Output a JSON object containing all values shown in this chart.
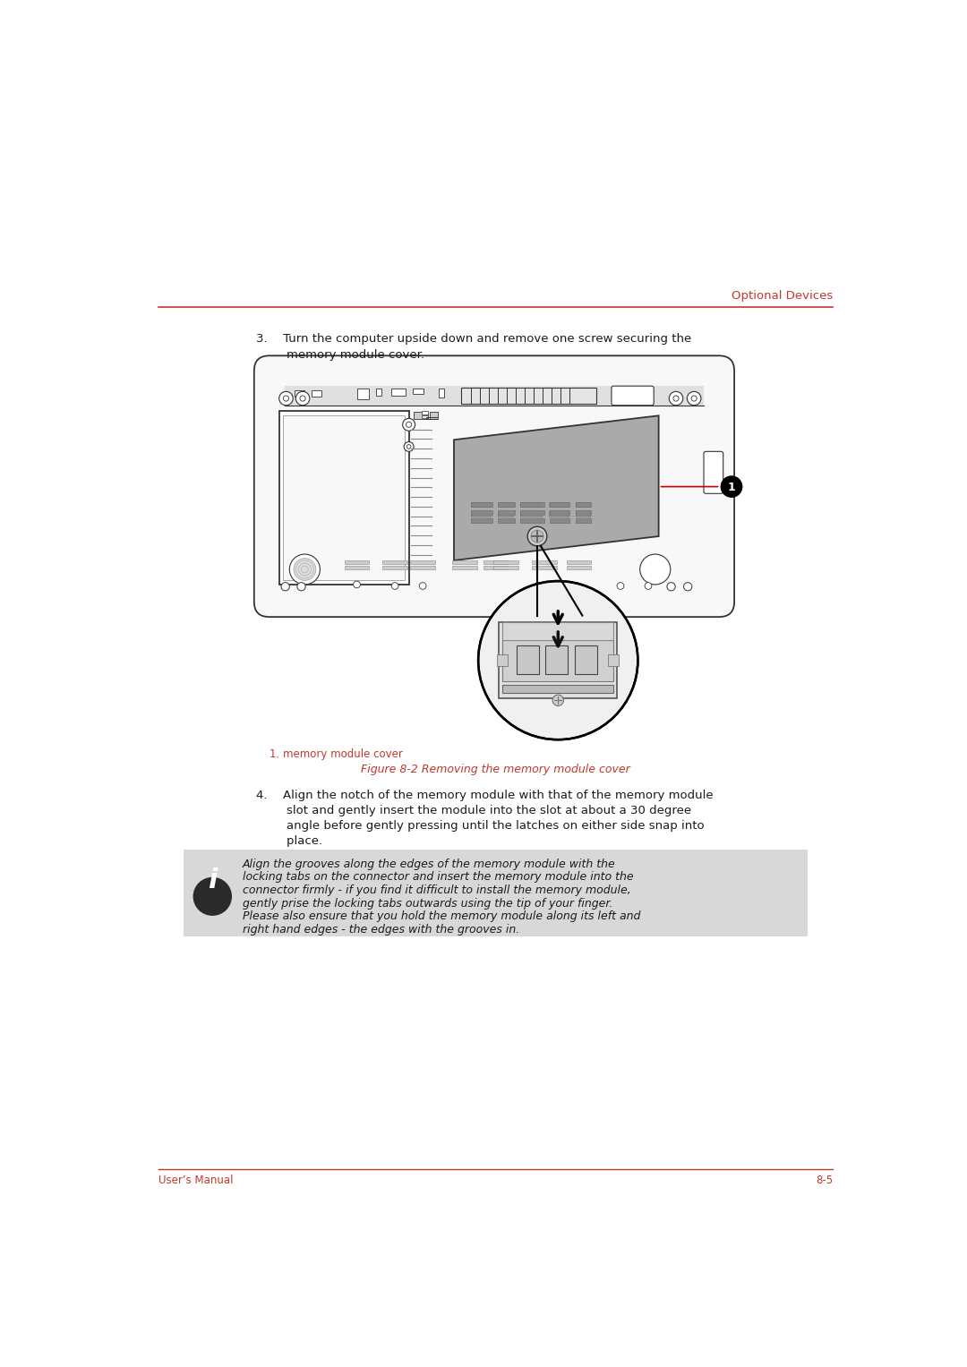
{
  "page_background": "#ffffff",
  "header_line_color": "#c0392b",
  "header_text": "Optional Devices",
  "header_text_color": "#c0392b",
  "header_text_size": 9.5,
  "footer_line_color": "#c0392b",
  "footer_left_text": "User’s Manual",
  "footer_right_text": "8-5",
  "footer_text_color": "#c0392b",
  "footer_text_size": 8.5,
  "step3_line1": "3.  Turn the computer upside down and remove one screw securing the",
  "step3_line2": "        memory module cover.",
  "step4_line1": "4.  Align the notch of the memory module with that of the memory module",
  "step4_line2": "        slot and gently insert the module into the slot at about a 30 degree",
  "step4_line3": "        angle before gently pressing until the latches on either side snap into",
  "step4_line4": "        place.",
  "note_line1": "Align the grooves along the edges of the memory module with the",
  "note_line2": "locking tabs on the connector and insert the memory module into the",
  "note_line3": "connector firmly - if you find it difficult to install the memory module,",
  "note_line4": "gently prise the locking tabs outwards using the tip of your finger.",
  "note_line5": "Please also ensure that you hold the memory module along its left and",
  "note_line6": "right hand edges - the edges with the grooves in.",
  "figure_caption_label": "1. memory module cover",
  "figure_caption_label_color": "#c0392b",
  "figure_caption_title": "Figure 8-2 Removing the memory module cover",
  "figure_caption_title_color": "#c0392b",
  "body_text_color": "#1a1a1a",
  "body_text_size": 9.5,
  "note_bg_color": "#d8d8d8",
  "info_icon_bg": "#2a2a2a",
  "laptop_outline_color": "#333333",
  "callout_circle_color": "#1a1a1a",
  "callout_line_color": "#cc0000",
  "mem_cover_color": "#aaaaaa",
  "laptop_body_color": "#f8f8f8",
  "inner_panel_color": "#f0f0f0"
}
